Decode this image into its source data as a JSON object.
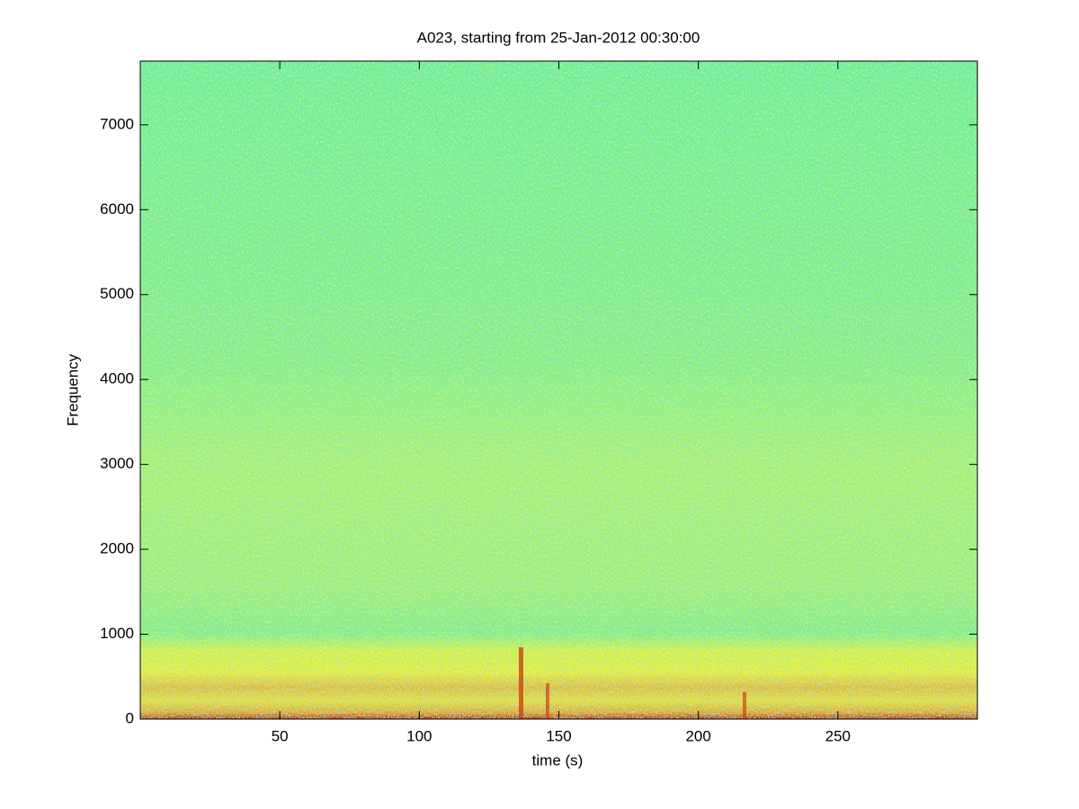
{
  "chart_data": {
    "type": "spectrogram",
    "title": "A023, starting from 25-Jan-2012 00:30:00",
    "x_label": "time (s)",
    "y_label": "Frequency",
    "xlim": [
      0,
      300
    ],
    "ylim": [
      0,
      7750
    ],
    "xticks": [
      50,
      100,
      150,
      200,
      250
    ],
    "yticks": [
      0,
      1000,
      2000,
      3000,
      4000,
      5000,
      6000,
      7000
    ]
  }
}
